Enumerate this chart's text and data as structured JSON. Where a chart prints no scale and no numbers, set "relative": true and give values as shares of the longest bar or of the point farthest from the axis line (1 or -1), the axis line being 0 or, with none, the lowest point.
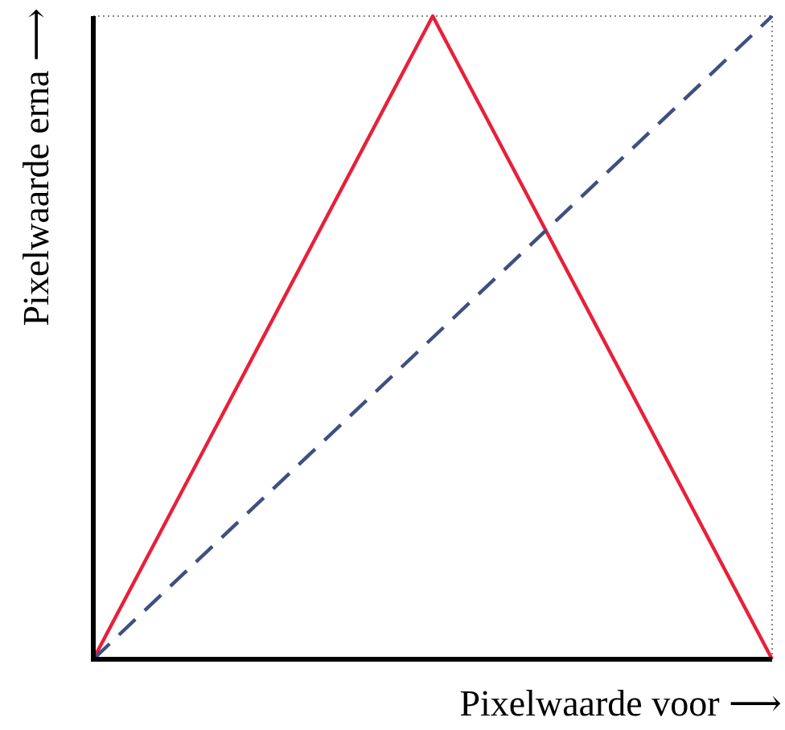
{
  "chart_data": {
    "type": "line",
    "relative": true,
    "xlabel": "Pixelwaarde voor ⟶",
    "ylabel": "Pixelwaarde erna ⟶",
    "categories": [
      null,
      null,
      null
    ],
    "grid": false,
    "series": [
      {
        "color": "#e8203a",
        "values": [
          0,
          1,
          0
        ],
        "line_style": "solid"
      },
      {
        "color": "#3f5080",
        "values": [
          0,
          0.5,
          1
        ],
        "line_style": "dashed"
      }
    ]
  }
}
